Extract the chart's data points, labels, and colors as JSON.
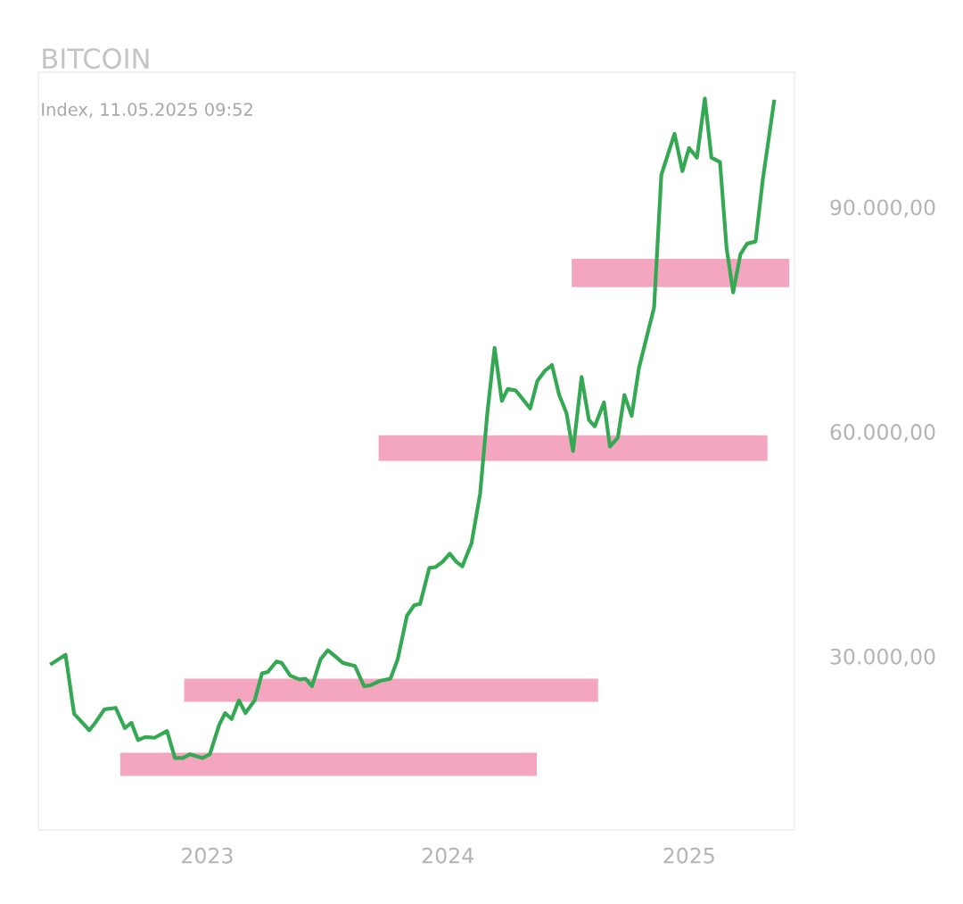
{
  "chart_data": {
    "type": "line",
    "title": "BITCOIN",
    "subtitle": "Index, 11.05.2025 09:52",
    "x": [
      "2022-05-10",
      "2022-05-31",
      "2022-06-13",
      "2022-07-02",
      "2022-07-06",
      "2022-07-15",
      "2022-07-29",
      "2022-08-15",
      "2022-08-29",
      "2022-09-08",
      "2022-09-18",
      "2022-09-29",
      "2022-10-13",
      "2022-11-01",
      "2022-11-13",
      "2022-11-25",
      "2022-12-06",
      "2022-12-25",
      "2023-01-05",
      "2023-01-19",
      "2023-01-28",
      "2023-02-07",
      "2023-02-18",
      "2023-02-28",
      "2023-03-14",
      "2023-03-25",
      "2023-04-03",
      "2023-04-16",
      "2023-04-24",
      "2023-05-07",
      "2023-05-21",
      "2023-05-30",
      "2023-06-09",
      "2023-06-22",
      "2023-07-03",
      "2023-07-14",
      "2023-07-26",
      "2023-08-13",
      "2023-08-27",
      "2023-09-05",
      "2023-09-20",
      "2023-10-06",
      "2023-10-17",
      "2023-10-31",
      "2023-11-11",
      "2023-11-20",
      "2023-12-04",
      "2023-12-13",
      "2023-12-24",
      "2024-01-04",
      "2024-01-14",
      "2024-01-23",
      "2024-02-06",
      "2024-02-19",
      "2024-03-01",
      "2024-03-12",
      "2024-03-23",
      "2024-04-01",
      "2024-04-13",
      "2024-05-05",
      "2024-05-16",
      "2024-05-27",
      "2024-06-07",
      "2024-06-18",
      "2024-06-29",
      "2024-07-09",
      "2024-07-22",
      "2024-08-02",
      "2024-08-11",
      "2024-08-25",
      "2024-09-03",
      "2024-09-15",
      "2024-09-25",
      "2024-10-06",
      "2024-10-17",
      "2024-11-09",
      "2024-11-20",
      "2024-12-10",
      "2024-12-22",
      "2025-01-01",
      "2025-01-13",
      "2025-01-25",
      "2025-02-04",
      "2025-02-17",
      "2025-02-27",
      "2025-03-09",
      "2025-03-20",
      "2025-03-30",
      "2025-04-12",
      "2025-04-23",
      "2025-05-10"
    ],
    "series": [
      {
        "type": "area",
        "color": "#f4a6c1",
        "x": [
          "2024-07-07",
          "2025-06-02"
        ],
        "lower": [
          79300,
          79300
        ],
        "upper": [
          83100,
          83100
        ],
        "values": [
          null,
          null
        ]
      },
      {
        "type": "area",
        "color": "#f4a6c1",
        "x": [
          "2023-09-18",
          "2025-04-30"
        ],
        "lower": [
          56100,
          56100
        ],
        "upper": [
          59500,
          59500
        ],
        "values": [
          null,
          null
        ]
      },
      {
        "type": "area",
        "color": "#f4a6c1",
        "x": [
          "2022-11-27",
          "2024-08-16"
        ],
        "lower": [
          23900,
          23900
        ],
        "upper": [
          27000,
          27000
        ],
        "values": [
          null,
          null
        ]
      },
      {
        "type": "area",
        "color": "#f4a6c1",
        "x": [
          "2022-08-22",
          "2024-05-15"
        ],
        "lower": [
          14000,
          14000
        ],
        "upper": [
          17100,
          17100
        ],
        "values": [
          null,
          null
        ]
      },
      {
        "color": "#34a853",
        "values": [
          29000,
          30200,
          22300,
          20500,
          20100,
          21100,
          22900,
          23100,
          20400,
          21100,
          18800,
          19200,
          19100,
          20000,
          16400,
          16400,
          16900,
          16400,
          16900,
          20800,
          22400,
          21600,
          24100,
          22400,
          24100,
          27700,
          27900,
          29300,
          29100,
          27400,
          26900,
          27000,
          26000,
          29600,
          30800,
          30000,
          29100,
          28700,
          26000,
          26100,
          26700,
          27000,
          29600,
          35400,
          36800,
          37000,
          41800,
          41900,
          42600,
          43700,
          42600,
          42000,
          45100,
          51700,
          62500,
          71200,
          64100,
          65700,
          65500,
          63100,
          66800,
          68100,
          68900,
          64900,
          62500,
          57400,
          67300,
          61600,
          60700,
          63900,
          58000,
          59200,
          64900,
          62100,
          68500,
          76600,
          94300,
          99800,
          94800,
          97900,
          96600,
          104500,
          96600,
          96000,
          84500,
          78600,
          83700,
          85100,
          85400,
          93700,
          104100
        ]
      }
    ],
    "xlim": [
      "2022-04-20",
      "2025-06-10"
    ],
    "ylim": [
      6800,
      108000
    ],
    "xticks": [
      {
        "value": "2023-01-01",
        "label": "2023"
      },
      {
        "value": "2024-01-01",
        "label": "2024"
      },
      {
        "value": "2025-01-01",
        "label": "2025"
      }
    ],
    "yticks": [
      {
        "value": 30000,
        "label": "30.000,00"
      },
      {
        "value": 60000,
        "label": "60.000,00"
      },
      {
        "value": 90000,
        "label": "90.000,00"
      }
    ],
    "grid": false,
    "legend": false,
    "marker": "none",
    "line_style": "solid"
  }
}
